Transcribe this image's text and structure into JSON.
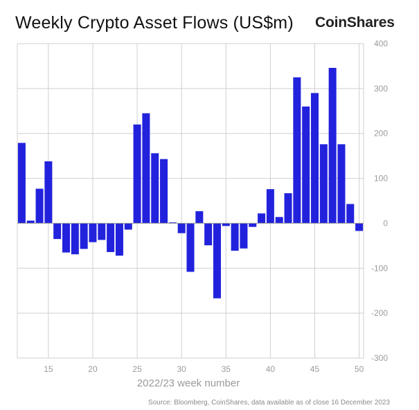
{
  "header": {
    "title": "Weekly Crypto Asset Flows (US$m)",
    "brand": "CoinShares"
  },
  "footer": {
    "source": "Source: Bloomberg, CoinShares, data available as of close 16 December 2023"
  },
  "colors": {
    "bar": "#2222dd",
    "grid": "#cfcfcf",
    "zero_line": "#999999",
    "tick_text": "#9a9a9a"
  },
  "chart_data": {
    "type": "bar",
    "title": "Weekly Crypto Asset Flows (US$m)",
    "xlabel": "2022/23 week number",
    "ylabel": "",
    "x": [
      12,
      13,
      14,
      15,
      16,
      17,
      18,
      19,
      20,
      21,
      22,
      23,
      24,
      25,
      26,
      27,
      28,
      29,
      30,
      31,
      32,
      33,
      34,
      35,
      36,
      37,
      38,
      39,
      40,
      41,
      42,
      43,
      44,
      45,
      46,
      47,
      48,
      49,
      50
    ],
    "values": [
      179,
      6,
      77,
      138,
      -35,
      -65,
      -69,
      -57,
      -42,
      -37,
      -64,
      -72,
      -14,
      220,
      245,
      156,
      143,
      2,
      -22,
      -108,
      27,
      -49,
      -167,
      -6,
      -61,
      -56,
      -8,
      22,
      76,
      14,
      67,
      325,
      260,
      290,
      176,
      346,
      176,
      43,
      -17
    ],
    "xlim": [
      11.5,
      50.5
    ],
    "ylim": [
      -300,
      400
    ],
    "xticks": [
      15,
      20,
      25,
      30,
      35,
      40,
      45,
      50
    ],
    "yticks": [
      -300,
      -200,
      -100,
      0,
      100,
      200,
      300,
      400
    ],
    "y_axis_position": "right",
    "grid": true
  }
}
